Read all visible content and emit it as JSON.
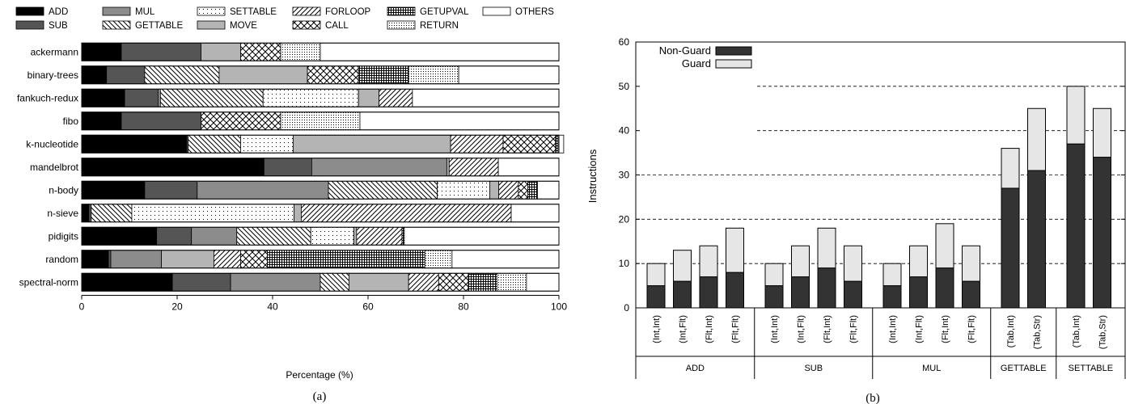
{
  "captions": {
    "a": "(a)",
    "b": "(b)"
  },
  "colors": {
    "black": "#000000",
    "dark_gray": "#555555",
    "mid_gray": "#8c8c8c",
    "light_gray": "#b4b4b4",
    "guard": "#e6e6e6",
    "nonguard": "#333333",
    "white": "#ffffff"
  },
  "chart_data": [
    {
      "type": "bar",
      "orientation": "horizontal",
      "stacked": true,
      "xlabel": "Percentage (%)",
      "xlim": [
        0,
        100
      ],
      "xticks": [
        0,
        20,
        40,
        60,
        80,
        100
      ],
      "legend_position": "top",
      "categories": [
        "ackermann",
        "binary-trees",
        "fankuch-redux",
        "fibo",
        "k-nucleotide",
        "mandelbrot",
        "n-body",
        "n-sieve",
        "pidigits",
        "random",
        "spectral-norm"
      ],
      "series": [
        {
          "name": "ADD",
          "fill": "black",
          "values": [
            8.3,
            5.2,
            9.0,
            8.3,
            22.0,
            38.2,
            13.2,
            1.5,
            15.7,
            5.6,
            19.0
          ]
        },
        {
          "name": "SUB",
          "fill": "dark_gray",
          "values": [
            16.7,
            8.0,
            7.0,
            16.7,
            0.3,
            10.0,
            11.0,
            0.5,
            7.3,
            0.5,
            12.2
          ]
        },
        {
          "name": "MUL",
          "fill": "mid_gray",
          "values": [
            0,
            0,
            0.5,
            0,
            0,
            28.3,
            27.5,
            0,
            9.5,
            10.6,
            18.8
          ]
        },
        {
          "name": "GETTABLE",
          "fill": "hatch_back",
          "values": [
            0,
            15.6,
            21.5,
            0,
            11.0,
            0,
            22.8,
            8.5,
            15.5,
            0,
            6.0
          ]
        },
        {
          "name": "SETTABLE",
          "fill": "dots_sparse",
          "values": [
            0,
            0,
            20.0,
            0,
            11.0,
            0,
            11.0,
            34.0,
            9.0,
            0,
            0
          ]
        },
        {
          "name": "MOVE",
          "fill": "light_gray",
          "values": [
            8.3,
            18.5,
            4.3,
            0,
            33.0,
            0.5,
            1.9,
            1.5,
            0.6,
            11.0,
            12.5
          ]
        },
        {
          "name": "FORLOOP",
          "fill": "hatch_fwd",
          "values": [
            0,
            0,
            7.0,
            0,
            11.0,
            10.3,
            4.1,
            44.0,
            9.5,
            5.6,
            6.3
          ]
        },
        {
          "name": "CALL",
          "fill": "crosshatch",
          "values": [
            8.4,
            10.7,
            0,
            16.7,
            11.0,
            0,
            2.0,
            0,
            0,
            5.6,
            6.2
          ]
        },
        {
          "name": "GETUPVAL",
          "fill": "grid",
          "values": [
            0,
            10.5,
            0,
            0,
            0.5,
            0,
            2.0,
            0,
            0.5,
            33.0,
            6.0
          ]
        },
        {
          "name": "RETURN",
          "fill": "dots_dense",
          "values": [
            8.3,
            10.5,
            0,
            16.6,
            0,
            0,
            0,
            0,
            0,
            5.7,
            6.2
          ]
        },
        {
          "name": "OTHERS",
          "fill": "white",
          "values": [
            50.0,
            21.0,
            30.7,
            41.7,
            1.2,
            12.7,
            4.5,
            10.0,
            32.4,
            22.4,
            6.8
          ]
        }
      ]
    },
    {
      "type": "bar",
      "stacked": true,
      "ylabel": "Instructions",
      "ylim": [
        0,
        60
      ],
      "yticks": [
        0,
        10,
        20,
        30,
        40,
        50,
        60
      ],
      "legend_position": "top-left",
      "categories": [
        "(Int,Int)",
        "(Int,Flt)",
        "(Flt,Int)",
        "(Flt,Flt)",
        "(Int,Int)",
        "(Int,Flt)",
        "(Flt,Int)",
        "(Flt,Flt)",
        "(Int,Int)",
        "(Int,Flt)",
        "(Flt,Int)",
        "(Flt,Flt)",
        "(Tab,Int)",
        "(Tab,Str)",
        "(Tab,Int)",
        "(Tab,Str)"
      ],
      "groups": [
        {
          "label": "ADD",
          "size": 4
        },
        {
          "label": "SUB",
          "size": 4
        },
        {
          "label": "MUL",
          "size": 4
        },
        {
          "label": "GETTABLE",
          "size": 2
        },
        {
          "label": "SETTABLE",
          "size": 2
        }
      ],
      "series": [
        {
          "name": "Non-Guard",
          "values": [
            5,
            6,
            7,
            8,
            5,
            7,
            9,
            6,
            5,
            7,
            9,
            6,
            27,
            31,
            37,
            34
          ]
        },
        {
          "name": "Guard",
          "values": [
            5,
            7,
            7,
            10,
            5,
            7,
            9,
            8,
            5,
            7,
            10,
            8,
            9,
            14,
            13,
            11
          ]
        }
      ]
    }
  ]
}
